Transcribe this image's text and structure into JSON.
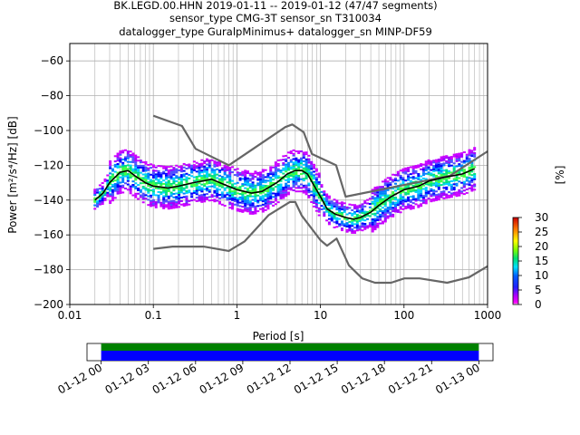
{
  "title_lines": [
    "BK.LEGD.00.HHN   2019-01-11 -- 2019-01-12  (47/47 segments)",
    "sensor_type CMG-3T sensor_sn T310034",
    "datalogger_type GuralpMinimus+ datalogger_sn MINP-DF59"
  ],
  "chart_data": [
    {
      "type": "heatmap",
      "xlabel": "Period [s]",
      "ylabel": "Power [m²/s⁴/Hz] [dB]",
      "x_scale": "log",
      "xlim": [
        0.01,
        1000
      ],
      "ylim": [
        -200,
        -50
      ],
      "x_ticks": [
        0.01,
        0.1,
        1,
        10,
        100,
        1000
      ],
      "x_tick_labels": [
        "0.01",
        "0.1",
        "1",
        "10",
        "100",
        "1000"
      ],
      "y_ticks": [
        -200,
        -180,
        -160,
        -140,
        -120,
        -100,
        -80,
        -60
      ],
      "y_tick_labels": [
        "−200",
        "−180",
        "−160",
        "−140",
        "−120",
        "−100",
        "−80",
        "−60"
      ],
      "grid": true,
      "colorbar": {
        "label": "[%]",
        "range": [
          0,
          30
        ],
        "ticks": [
          0,
          5,
          10,
          15,
          20,
          25,
          30
        ],
        "tick_labels": [
          "0",
          "5",
          "10",
          "15",
          "20",
          "25",
          "30"
        ]
      },
      "series": [
        {
          "role": "high_noise_model",
          "color": "#666666",
          "x": [
            0.1,
            0.22,
            0.32,
            0.8,
            3.8,
            4.6,
            6.3,
            7.9,
            15.4,
            20,
            354.8,
            1000
          ],
          "y": [
            -91.5,
            -97.4,
            -110.5,
            -120,
            -98,
            -96.5,
            -101,
            -113.5,
            -120,
            -138,
            -126,
            -112
          ]
        },
        {
          "role": "low_noise_model",
          "color": "#666666",
          "x": [
            0.1,
            0.17,
            0.4,
            0.8,
            1.24,
            2.4,
            4.3,
            5,
            6,
            10,
            12,
            15.6,
            21.9,
            31.6,
            45,
            70,
            101,
            154,
            328,
            600,
            1000
          ],
          "y": [
            -168,
            -166.7,
            -166.7,
            -169.2,
            -163.7,
            -148.6,
            -141.1,
            -141.1,
            -149,
            -163,
            -166.2,
            -162.1,
            -177.5,
            -185,
            -187.5,
            -187.5,
            -185,
            -185,
            -187.5,
            -184.4,
            -178
          ]
        },
        {
          "role": "mode",
          "color": "#000000",
          "x": [
            0.02,
            0.025,
            0.03,
            0.04,
            0.05,
            0.06,
            0.08,
            0.1,
            0.15,
            0.2,
            0.3,
            0.5,
            0.7,
            1,
            1.5,
            2,
            3,
            4,
            5,
            6,
            7,
            8,
            10,
            12,
            15,
            20,
            25,
            30,
            40,
            50,
            70,
            100,
            150,
            200,
            300,
            500,
            700
          ],
          "y": [
            -140,
            -136,
            -130,
            -124,
            -123,
            -126,
            -130,
            -132,
            -133,
            -132,
            -130,
            -128,
            -131,
            -134,
            -136,
            -135,
            -130,
            -125,
            -123,
            -123,
            -125,
            -130,
            -138,
            -145,
            -148,
            -150,
            -151,
            -150,
            -147,
            -143,
            -138,
            -134,
            -132,
            -129,
            -127,
            -125,
            -122
          ]
        }
      ]
    },
    {
      "type": "bar",
      "orientation": "horizontal",
      "x_tick_labels": [
        "01-12 00",
        "01-12 03",
        "01-12 06",
        "01-12 09",
        "01-12 12",
        "01-12 15",
        "01-12 18",
        "01-12 21",
        "01-13 00"
      ],
      "xlim_hours": [
        -0.9,
        24.9
      ],
      "series": [
        {
          "role": "data",
          "color": "#008000",
          "span_hours": [
            0,
            24
          ]
        },
        {
          "role": "coverage",
          "color": "#0000ff",
          "span_hours": [
            0,
            24
          ]
        }
      ]
    }
  ]
}
